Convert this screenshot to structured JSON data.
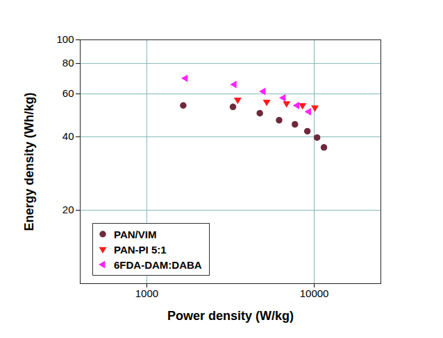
{
  "chart_data": {
    "type": "scatter",
    "x_label": "Power density (W/kg)",
    "y_label": "Energy density (Wh/kg)",
    "log": true,
    "grid": true,
    "legend": "lower left",
    "xlim": [
      400,
      25000
    ],
    "xticks": [
      1000,
      10000
    ],
    "ylim": [
      10,
      100
    ],
    "yticks": [
      20,
      40,
      60,
      80,
      100
    ],
    "series": [
      {
        "name": "PAN/VIM",
        "color": "#6e2a3c",
        "marker": "circle",
        "x": [
          1650,
          3270,
          4730,
          6170,
          7670,
          9100,
          10400,
          11430
        ],
        "values": [
          53.8,
          53.1,
          50.0,
          46.8,
          45.0,
          42.2,
          39.7,
          36.2
        ]
      },
      {
        "name": "PAN-PI 5:1",
        "color": "#ff1a1a",
        "marker": "triangle-down",
        "x": [
          3490,
          5200,
          6840,
          8510,
          10090
        ],
        "values": [
          56.7,
          55.6,
          54.8,
          53.8,
          52.7
        ]
      },
      {
        "name": "6FDA-DAM:DABA",
        "color": "#ff22ff",
        "marker": "triangle-left",
        "x": [
          1700,
          3330,
          4960,
          6530,
          7890,
          9270
        ],
        "values": [
          69.5,
          65.6,
          61.4,
          57.8,
          53.8,
          50.7
        ]
      }
    ]
  }
}
